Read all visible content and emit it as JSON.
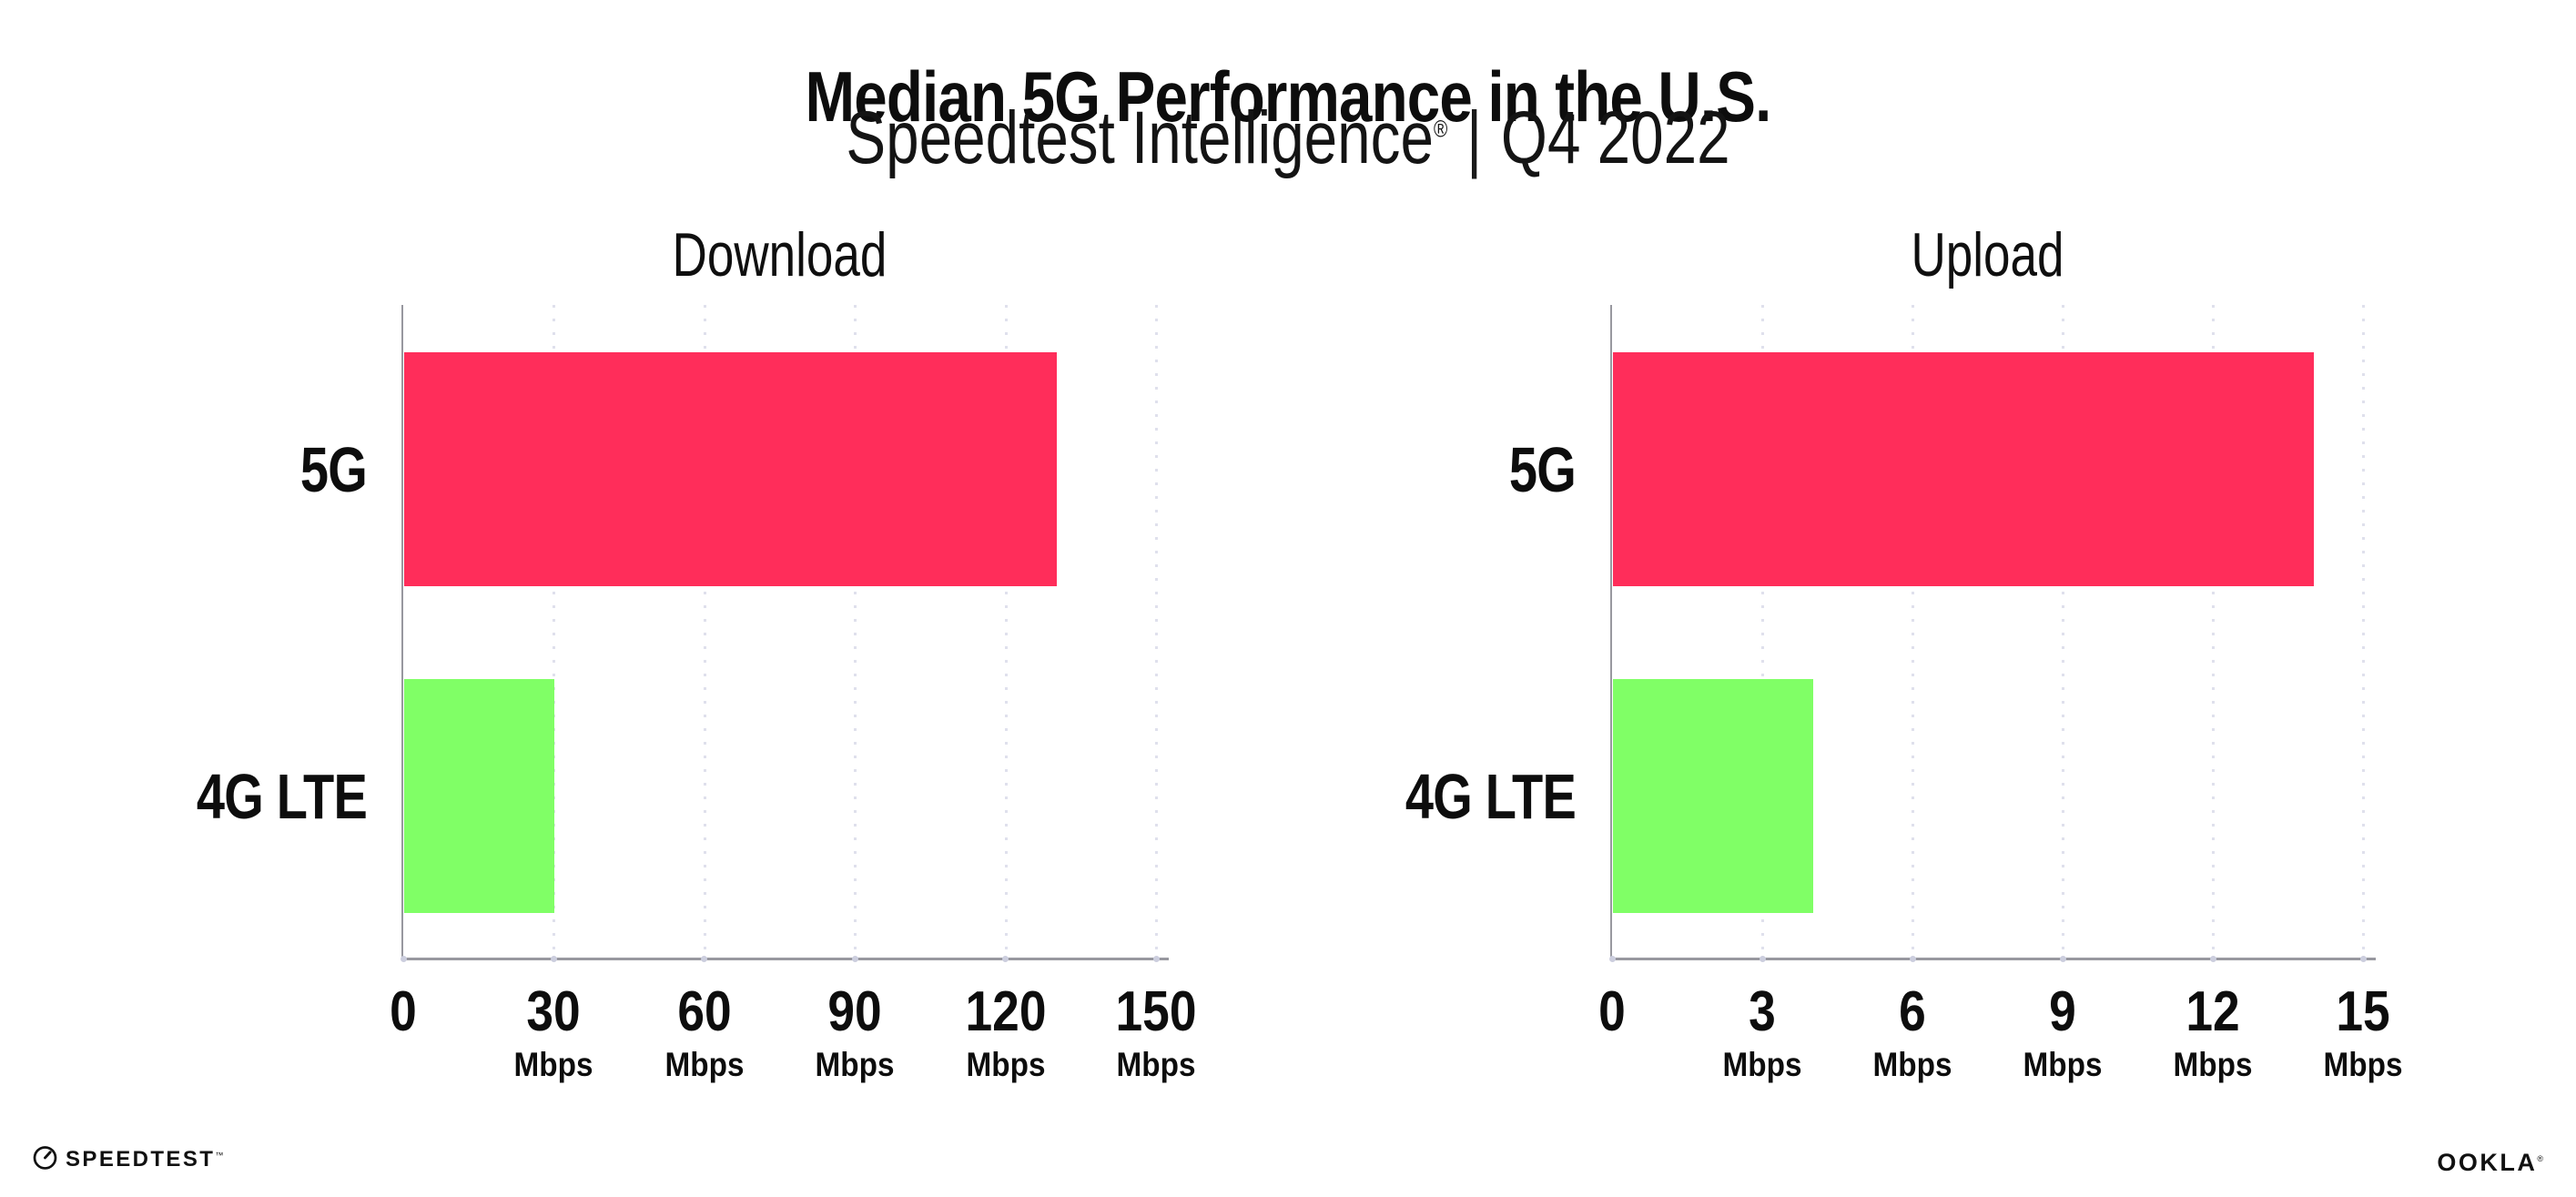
{
  "header": {
    "title": "Median 5G Performance in the U.S.",
    "subtitle_product": "Speedtest Intelligence",
    "subtitle_reg": "®",
    "subtitle_divider": "|",
    "subtitle_period": "Q4 2022"
  },
  "footer": {
    "speedtest_label": "SPEEDTEST",
    "speedtest_tm": "™",
    "ookla_label": "OOKLA",
    "ookla_reg": "®"
  },
  "colors": {
    "bar_5g": "#ff2d5a",
    "bar_4g_lte": "#80ff66",
    "axis_line": "#98989f",
    "grid_dot": "#dfe0ec",
    "text": "#0d0d0d"
  },
  "chart_data": [
    {
      "type": "bar",
      "orientation": "horizontal",
      "title": "Download",
      "categories": [
        "5G",
        "4G LTE"
      ],
      "values": [
        130,
        30
      ],
      "unit": "Mbps",
      "xlabel": "",
      "ylabel": "",
      "xlim": [
        0,
        150
      ],
      "xticks": [
        0,
        30,
        60,
        90,
        120,
        150
      ],
      "bar_colors": [
        "#ff2d5a",
        "#80ff66"
      ],
      "grid": "dotted-vertical",
      "legend_position": "none"
    },
    {
      "type": "bar",
      "orientation": "horizontal",
      "title": "Upload",
      "categories": [
        "5G",
        "4G LTE"
      ],
      "values": [
        14,
        4
      ],
      "unit": "Mbps",
      "xlabel": "",
      "ylabel": "",
      "xlim": [
        0,
        15
      ],
      "xticks": [
        0,
        3,
        6,
        9,
        12,
        15
      ],
      "bar_colors": [
        "#ff2d5a",
        "#80ff66"
      ],
      "grid": "dotted-vertical",
      "legend_position": "none"
    }
  ]
}
